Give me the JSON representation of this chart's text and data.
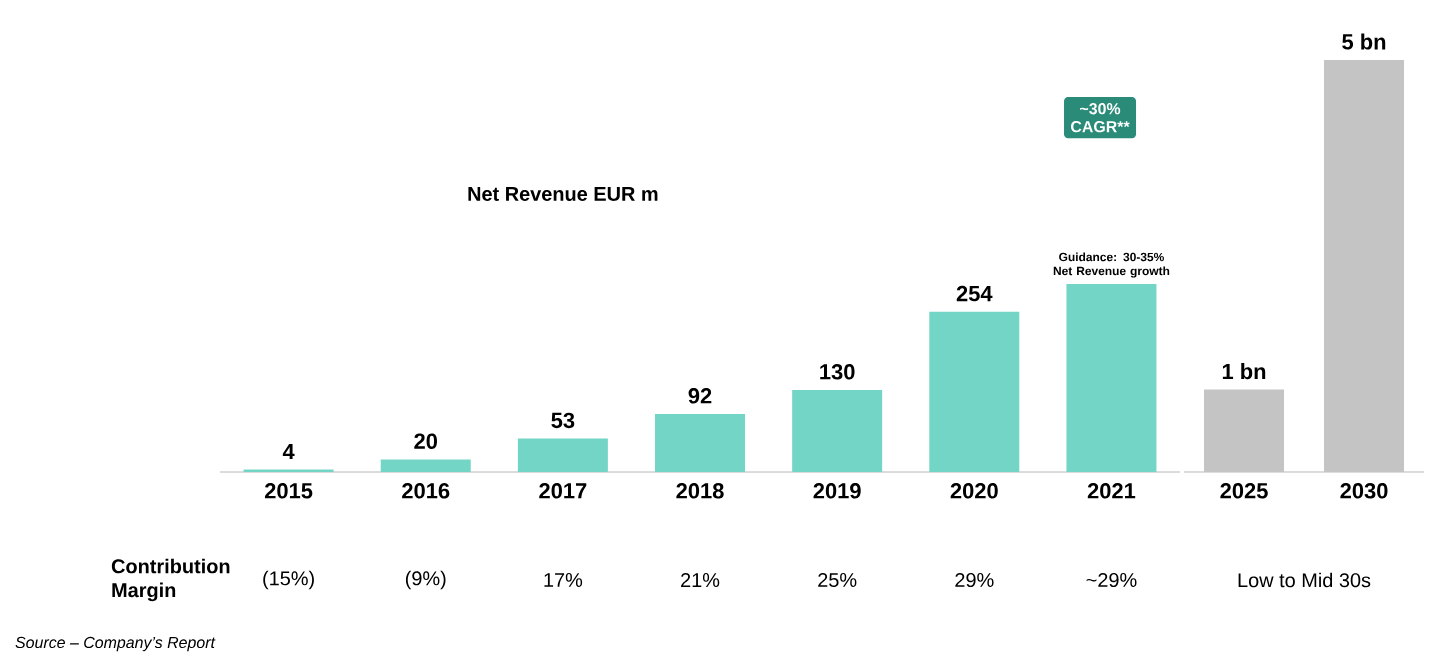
{
  "chart_data": [
    {
      "type": "bar",
      "title": "Net Revenue  EUR m",
      "categories": [
        "2015",
        "2016",
        "2017",
        "2018",
        "2019",
        "2020",
        "2021"
      ],
      "values": [
        4,
        20,
        53,
        92,
        130,
        254,
        298
      ],
      "value_labels": [
        "4",
        "20",
        "53",
        "92",
        "130",
        "254",
        null
      ],
      "color": "#72d5c5",
      "tick_labels": "x",
      "annotations": [
        "Contribution Margin",
        "(15%)",
        "(9%)",
        "17%",
        "21%",
        "25%",
        "29%",
        "~29%",
        "Guidance: 30-35% Net Revenue growth",
        "Source – Company’s Report"
      ]
    },
    {
      "type": "bar",
      "categories": [
        "2025",
        "2030"
      ],
      "values": [
        1,
        5
      ],
      "value_labels": [
        "1 bn",
        "5 bn"
      ],
      "color": "#c4c4c4",
      "tick_labels": "x",
      "annotations": [
        "Low to Mid 30s",
        "~30% CAGR**"
      ]
    }
  ]
}
